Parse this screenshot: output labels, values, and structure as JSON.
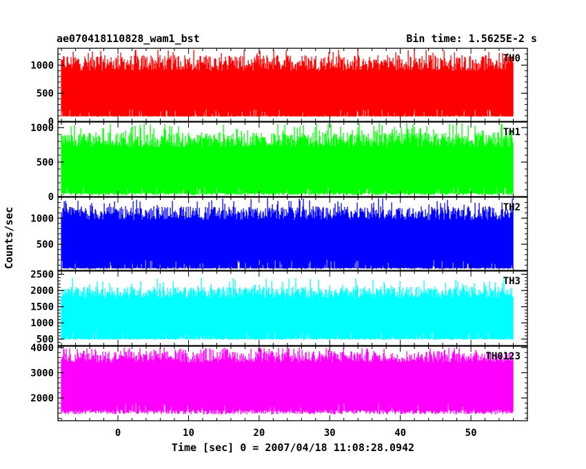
{
  "header": {
    "left_title": "ae070418110828_wam1_bst",
    "right_title": "Bin time: 1.5625E-2 s"
  },
  "axes": {
    "ylabel": "Counts/sec",
    "xlabel": "Time [sec] 0 = 2007/04/18 11:08:28.0942"
  },
  "chart_data": {
    "type": "line",
    "title": "ae070418110828_wam1_bst",
    "xlabel": "Time [sec] 0 = 2007/04/18 11:08:28.0942",
    "ylabel": "Counts/sec",
    "xlim": [
      -8.5,
      58
    ],
    "x_ticks": [
      0,
      10,
      20,
      30,
      40,
      50
    ],
    "x_range_data": [
      -8,
      56
    ],
    "bin_time_s": 0.015625,
    "panels": [
      {
        "name": "TH0",
        "color": "#ff0000",
        "ylim": [
          0,
          1300
        ],
        "y_ticks": [
          0,
          500,
          1000
        ],
        "baseline": 85,
        "mean": 530,
        "low": 90,
        "high": 1200,
        "peak": 1290
      },
      {
        "name": "TH1",
        "color": "#00ff00",
        "ylim": [
          0,
          1080
        ],
        "y_ticks": [
          0,
          500,
          1000
        ],
        "baseline": 20,
        "mean": 430,
        "low": 40,
        "high": 950,
        "peak": 1070
      },
      {
        "name": "TH2",
        "color": "#0000ff",
        "ylim": [
          0,
          1400
        ],
        "y_ticks": [
          500,
          1000
        ],
        "baseline": 30,
        "mean": 620,
        "low": 40,
        "high": 1250,
        "peak": 1390
      },
      {
        "name": "TH3",
        "color": "#00ffff",
        "ylim": [
          300,
          2600
        ],
        "y_ticks": [
          500,
          1000,
          1500,
          2000,
          2500
        ],
        "baseline": 480,
        "mean": 1300,
        "low": 500,
        "high": 2150,
        "peak": 2400
      },
      {
        "name": "TH0123",
        "color": "#ff00ff",
        "ylim": [
          1100,
          4050
        ],
        "y_ticks": [
          2000,
          3000,
          4000
        ],
        "baseline": 1350,
        "mean": 2800,
        "low": 1450,
        "high": 3900,
        "peak": 4000
      }
    ]
  }
}
